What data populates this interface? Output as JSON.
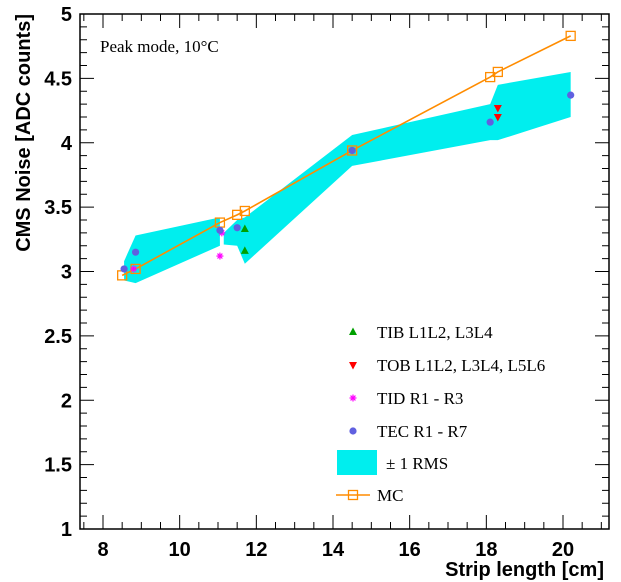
{
  "chart_data": {
    "type": "scatter",
    "title": "",
    "annotation": "Peak mode, 10°C",
    "xlabel": "Strip length [cm]",
    "ylabel": "CMS Noise [ADC counts]",
    "xlim": [
      7.4,
      21.2
    ],
    "ylim": [
      1,
      5
    ],
    "x_ticks": [
      {
        "value": 8,
        "label": "8"
      },
      {
        "value": 10,
        "label": "10"
      },
      {
        "value": 12,
        "label": "12"
      },
      {
        "value": 14,
        "label": "14"
      },
      {
        "value": 16,
        "label": "16"
      },
      {
        "value": 18,
        "label": "18"
      },
      {
        "value": 20,
        "label": "20"
      }
    ],
    "y_ticks": [
      {
        "value": 1,
        "label": "1"
      },
      {
        "value": 1.5,
        "label": "1.5"
      },
      {
        "value": 2,
        "label": "2"
      },
      {
        "value": 2.5,
        "label": "2.5"
      },
      {
        "value": 3,
        "label": "3"
      },
      {
        "value": 3.5,
        "label": "3.5"
      },
      {
        "value": 4,
        "label": "4"
      },
      {
        "value": 4.5,
        "label": "4.5"
      },
      {
        "value": 5,
        "label": "5"
      }
    ],
    "grid": false,
    "legend_position": "bottom-right",
    "series": [
      {
        "name": "TIB L1L2, L3L4",
        "marker": "triangle-up",
        "color": "#00a000",
        "points": [
          {
            "x": 11.7,
            "y": 3.33
          },
          {
            "x": 11.7,
            "y": 3.16
          }
        ]
      },
      {
        "name": "TOB L1L2, L3L4, L5L6",
        "marker": "triangle-down",
        "color": "#ff0000",
        "points": [
          {
            "x": 18.3,
            "y": 4.27
          },
          {
            "x": 18.3,
            "y": 4.2
          }
        ]
      },
      {
        "name": "TID R1 - R3",
        "marker": "star",
        "color": "#ff00ff",
        "points": [
          {
            "x": 8.8,
            "y": 3.02
          },
          {
            "x": 11.05,
            "y": 3.12
          },
          {
            "x": 11.1,
            "y": 3.3
          }
        ]
      },
      {
        "name": "TEC R1 - R7",
        "marker": "circle",
        "color": "#6060e0",
        "points": [
          {
            "x": 8.55,
            "y": 3.02
          },
          {
            "x": 8.85,
            "y": 3.15
          },
          {
            "x": 11.05,
            "y": 3.32
          },
          {
            "x": 11.5,
            "y": 3.34
          },
          {
            "x": 14.5,
            "y": 3.94
          },
          {
            "x": 18.1,
            "y": 4.16
          },
          {
            "x": 20.2,
            "y": 4.37
          }
        ]
      }
    ],
    "band": {
      "name": "± 1 RMS",
      "color": "#00eeee",
      "segments": [
        {
          "x": [
            8.55,
            8.85,
            11.05
          ],
          "upper": [
            3.08,
            3.28,
            3.42
          ],
          "lower": [
            2.93,
            2.91,
            3.2
          ]
        },
        {
          "x": [
            11.15,
            11.5,
            11.7,
            14.5,
            18.1,
            18.3,
            20.2
          ],
          "upper": [
            3.3,
            3.4,
            3.42,
            4.06,
            4.3,
            4.45,
            4.55
          ],
          "lower": [
            3.21,
            3.2,
            3.06,
            3.82,
            4.02,
            4.02,
            4.2
          ]
        }
      ]
    },
    "mc": {
      "name": "MC",
      "marker": "open-square",
      "color": "#ff8c00",
      "points": [
        {
          "x": 8.5,
          "y": 2.97
        },
        {
          "x": 8.85,
          "y": 3.02
        },
        {
          "x": 11.05,
          "y": 3.38
        },
        {
          "x": 11.5,
          "y": 3.44
        },
        {
          "x": 11.7,
          "y": 3.47
        },
        {
          "x": 14.5,
          "y": 3.94
        },
        {
          "x": 18.1,
          "y": 4.51
        },
        {
          "x": 18.3,
          "y": 4.55
        },
        {
          "x": 20.2,
          "y": 4.83
        }
      ]
    }
  }
}
